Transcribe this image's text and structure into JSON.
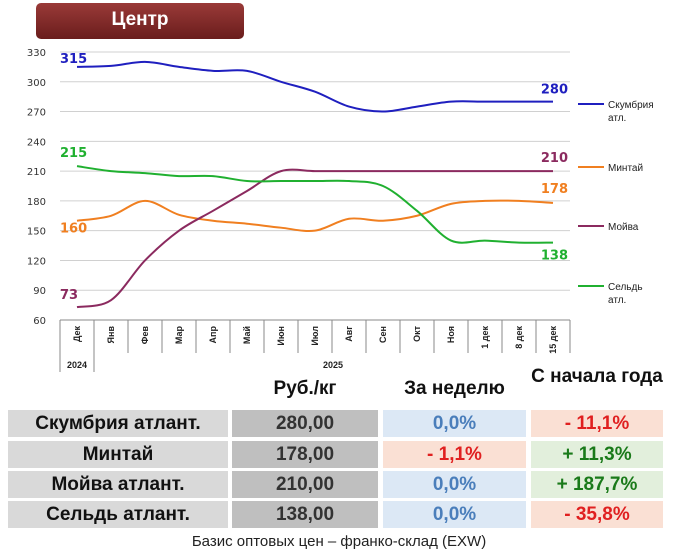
{
  "title": "Центр",
  "chart_data": {
    "type": "line",
    "categories": [
      "Дек",
      "Янв",
      "Фев",
      "Мар",
      "Апр",
      "Май",
      "Июн",
      "Июл",
      "Авг",
      "Сен",
      "Окт",
      "Ноя",
      "1 дек",
      "8 дек",
      "15 дек"
    ],
    "year_labels": [
      "2024",
      "2025"
    ],
    "ylim": [
      60,
      330
    ],
    "yticks": [
      60,
      90,
      120,
      150,
      180,
      210,
      240,
      270,
      300,
      330
    ],
    "series": [
      {
        "name": "Скумбрия атл.",
        "color": "#1f1fbf",
        "values": [
          315,
          316,
          320,
          315,
          311,
          311,
          300,
          290,
          275,
          270,
          275,
          280,
          280,
          280,
          280
        ],
        "start_label": "315",
        "end_label": "280"
      },
      {
        "name": "Минтай",
        "color": "#f07f20",
        "values": [
          160,
          165,
          180,
          166,
          160,
          157,
          153,
          150,
          162,
          160,
          165,
          177,
          180,
          180,
          178
        ],
        "start_label": "160",
        "end_label": "178"
      },
      {
        "name": "Мойва",
        "color": "#8b2a5f",
        "values": [
          73,
          80,
          120,
          150,
          170,
          190,
          210,
          210,
          210,
          210,
          210,
          210,
          210,
          210,
          210
        ],
        "start_label": "73",
        "end_label": "210"
      },
      {
        "name": "Сельдь атл.",
        "color": "#20b030",
        "values": [
          215,
          210,
          208,
          205,
          205,
          200,
          200,
          200,
          200,
          195,
          170,
          140,
          140,
          138,
          138
        ],
        "start_label": "215",
        "end_label": "138"
      }
    ]
  },
  "table": {
    "headers": [
      "Руб./кг",
      "За неделю",
      "С начала года"
    ],
    "rows": [
      {
        "name": "Скумбрия атлант.",
        "price": "280,00",
        "week": "0,0%",
        "ytd": "- 11,1%"
      },
      {
        "name": "Минтай",
        "price": "178,00",
        "week": "- 1,1%",
        "ytd": "+ 11,3%"
      },
      {
        "name": "Мойва атлант.",
        "price": "210,00",
        "week": "0,0%",
        "ytd": "+ 187,7%"
      },
      {
        "name": "Сельдь атлант.",
        "price": "138,00",
        "week": "0,0%",
        "ytd": "- 35,8%"
      }
    ],
    "colors": {
      "neutral": "#4a7ebb",
      "neg": "#e02020",
      "pos": "#1a7a1a",
      "neutral_bg": "#dce8f5",
      "neg_bg": "#fae0d4",
      "pos_bg": "#e2efdc"
    }
  },
  "footer": "Базис оптовых цен – франко-склад (EXW)"
}
